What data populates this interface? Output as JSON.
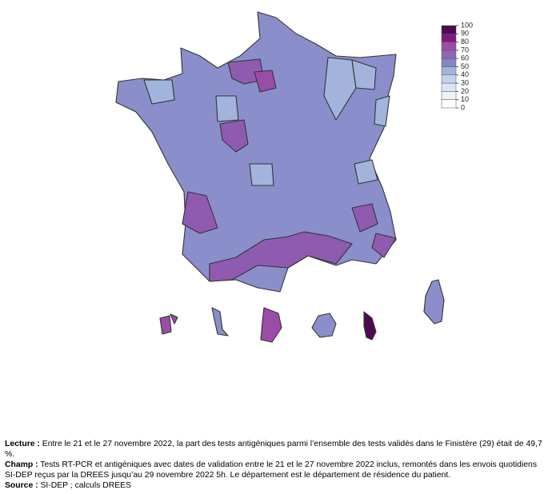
{
  "legend": {
    "ticks": [
      100,
      90,
      80,
      70,
      60,
      50,
      40,
      30,
      20,
      10,
      0
    ],
    "colors": [
      "#4d0a4f",
      "#7e1a80",
      "#9a4da6",
      "#8f66b5",
      "#8585c8",
      "#a3b4dc",
      "#c2d4ea",
      "#dbe6f3",
      "#eef3f9",
      "#fafcfe"
    ]
  },
  "notes": [
    {
      "label": "Lecture :",
      "text": "Entre le 21 et le 27 novembre 2022, la part des tests antigéniques parmi l’ensemble des tests validés dans le Finistère (29) était de 49,7 %."
    },
    {
      "label": "Champ :",
      "text": "Tests RT-PCR et antigéniques avec dates de validation entre le 21 et le 27 novembre 2022 inclus, remontés dans les envois quotidiens SI-DEP reçus par la DREES jusqu’au 29 novembre 2022 5h. Le département est le département de résidence du patient."
    },
    {
      "label": "Source :",
      "text": "SI-DEP ; calculs DREES"
    }
  ]
}
